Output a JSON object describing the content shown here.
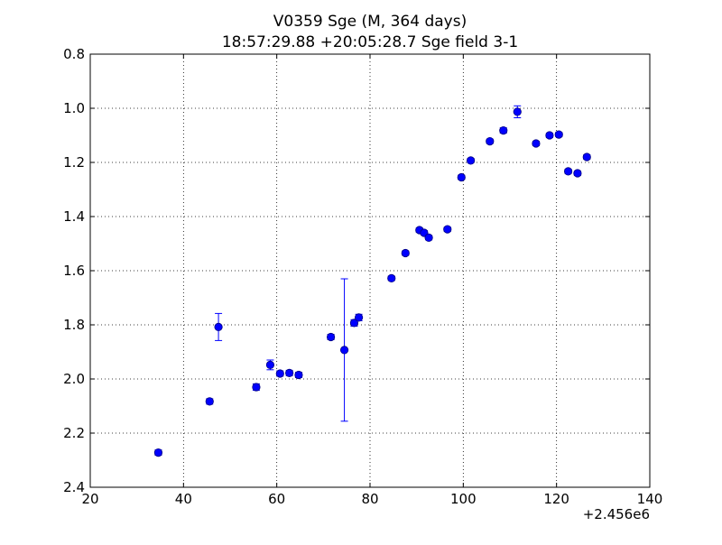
{
  "chart_data": {
    "type": "scatter",
    "title": "V0359 Sge (M, 364 days)",
    "subtitle": "18:57:29.88 +20:05:28.7 Sge field 3-1",
    "xlabel": "",
    "ylabel": "",
    "x_offset_label": "+2.456e6",
    "xlim": [
      20,
      140
    ],
    "ylim": [
      0.8,
      2.4
    ],
    "y_inverted": true,
    "xticks": [
      20,
      40,
      60,
      80,
      100,
      120,
      140
    ],
    "yticks": [
      0.8,
      1.0,
      1.2,
      1.4,
      1.6,
      1.8,
      2.0,
      2.2,
      2.4
    ],
    "xtick_labels": [
      "20",
      "40",
      "60",
      "80",
      "100",
      "120",
      "140"
    ],
    "ytick_labels": [
      "0.8",
      "1.0",
      "1.2",
      "1.4",
      "1.6",
      "1.8",
      "2.0",
      "2.2",
      "2.4"
    ],
    "grid": true,
    "grid_style": "dotted",
    "marker_color": "#0000ff",
    "points": [
      {
        "x": 34.6,
        "y": 2.272,
        "err": 0.01
      },
      {
        "x": 45.6,
        "y": 2.083,
        "err": 0.01
      },
      {
        "x": 47.5,
        "y": 1.808,
        "err": 0.05
      },
      {
        "x": 55.6,
        "y": 2.03,
        "err": 0.012
      },
      {
        "x": 58.6,
        "y": 1.948,
        "err": 0.018
      },
      {
        "x": 60.7,
        "y": 1.98,
        "err": 0.01
      },
      {
        "x": 62.7,
        "y": 1.978,
        "err": 0.01
      },
      {
        "x": 64.7,
        "y": 1.985,
        "err": 0.01
      },
      {
        "x": 71.6,
        "y": 1.845,
        "err": 0.01
      },
      {
        "x": 74.5,
        "y": 1.893,
        "err": 0.263
      },
      {
        "x": 76.6,
        "y": 1.793,
        "err": 0.012
      },
      {
        "x": 77.6,
        "y": 1.773,
        "err": 0.012
      },
      {
        "x": 84.6,
        "y": 1.628,
        "err": 0.008
      },
      {
        "x": 87.6,
        "y": 1.535,
        "err": 0.008
      },
      {
        "x": 90.6,
        "y": 1.45,
        "err": 0.008
      },
      {
        "x": 91.6,
        "y": 1.46,
        "err": 0.008
      },
      {
        "x": 92.6,
        "y": 1.478,
        "err": 0.008
      },
      {
        "x": 96.6,
        "y": 1.447,
        "err": 0.008
      },
      {
        "x": 99.6,
        "y": 1.255,
        "err": 0.008
      },
      {
        "x": 101.6,
        "y": 1.193,
        "err": 0.008
      },
      {
        "x": 105.7,
        "y": 1.122,
        "err": 0.008
      },
      {
        "x": 108.6,
        "y": 1.082,
        "err": 0.01
      },
      {
        "x": 111.6,
        "y": 1.013,
        "err": 0.022
      },
      {
        "x": 115.6,
        "y": 1.13,
        "err": 0.008
      },
      {
        "x": 118.5,
        "y": 1.1,
        "err": 0.008
      },
      {
        "x": 120.5,
        "y": 1.097,
        "err": 0.008
      },
      {
        "x": 122.5,
        "y": 1.233,
        "err": 0.008
      },
      {
        "x": 124.5,
        "y": 1.24,
        "err": 0.008
      },
      {
        "x": 126.5,
        "y": 1.18,
        "err": 0.008
      }
    ]
  }
}
